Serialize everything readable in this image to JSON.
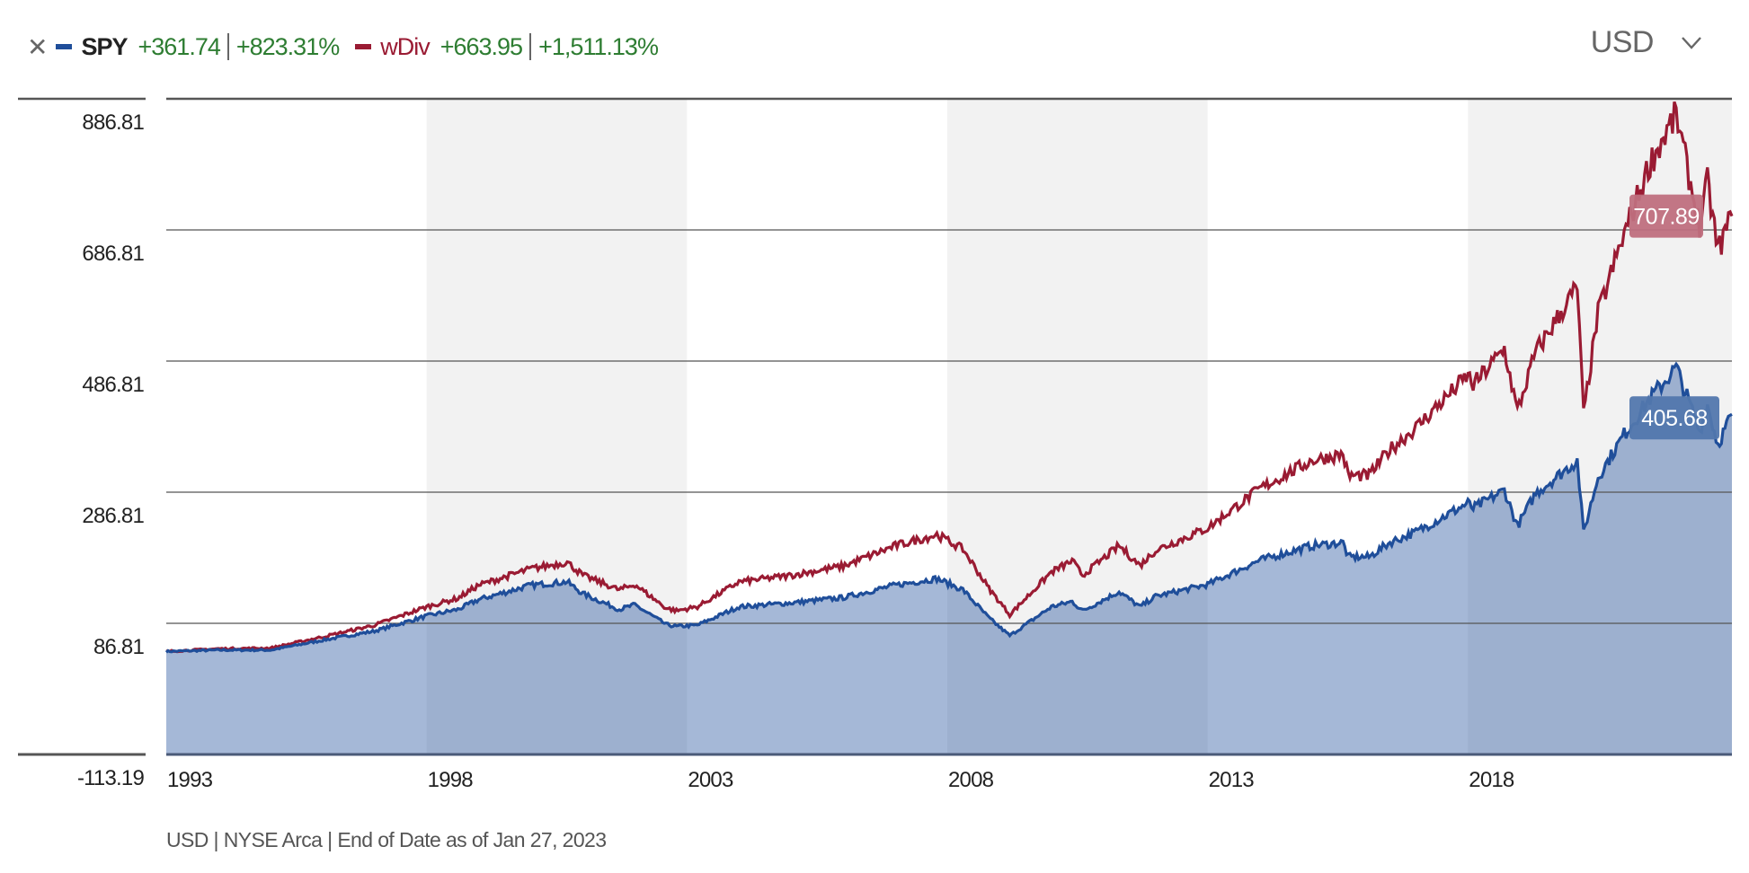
{
  "legend": {
    "close_icon": "close-icon",
    "series": [
      {
        "symbol": "SPY",
        "change": "+361.74",
        "change_pct": "+823.31%",
        "color": "#1f4e9a"
      },
      {
        "symbol": "wDiv",
        "change": "+663.95",
        "change_pct": "+1,511.13%",
        "color": "#9a1b33"
      }
    ]
  },
  "currency_selector": {
    "value": "USD",
    "icon": "chevron-down-icon"
  },
  "footer": "USD | NYSE Arca | End of Date as of Jan 27, 2023",
  "chart_data": {
    "type": "line",
    "title": "",
    "xlabel": "",
    "ylabel": "",
    "xlim": [
      1993.0,
      2023.07
    ],
    "ylim": [
      -113.19,
      886.81
    ],
    "y_ticks": [
      "886.81",
      "686.81",
      "486.81",
      "286.81",
      "86.81",
      "-113.19"
    ],
    "y_tick_values": [
      886.81,
      686.81,
      486.81,
      286.81,
      86.81,
      -113.19
    ],
    "x_ticks": [
      "1993",
      "1998",
      "2003",
      "2008",
      "2013",
      "2018"
    ],
    "x_tick_values": [
      1993,
      1998,
      2003,
      2008,
      2013,
      2018
    ],
    "shaded_periods": [
      [
        1998,
        2003
      ],
      [
        2008,
        2013
      ],
      [
        2018,
        2023.07
      ]
    ],
    "grid": true,
    "series": [
      {
        "name": "SPY",
        "color": "#1f4e9a",
        "filled": true,
        "last_value_label": "405.68",
        "points": [
          [
            1993.0,
            43.9
          ],
          [
            1994.0,
            46
          ],
          [
            1995.0,
            46
          ],
          [
            1996.0,
            61
          ],
          [
            1997.0,
            75
          ],
          [
            1998.0,
            98
          ],
          [
            1998.6,
            108
          ],
          [
            1999.0,
            123
          ],
          [
            2000.0,
            145
          ],
          [
            2000.7,
            150
          ],
          [
            2001.0,
            132
          ],
          [
            2001.7,
            108
          ],
          [
            2002.0,
            115
          ],
          [
            2002.6,
            85
          ],
          [
            2002.8,
            82
          ],
          [
            2003.2,
            84
          ],
          [
            2004.0,
            112
          ],
          [
            2005.0,
            118
          ],
          [
            2006.0,
            126
          ],
          [
            2007.0,
            145
          ],
          [
            2007.8,
            155
          ],
          [
            2008.3,
            138
          ],
          [
            2008.8,
            95
          ],
          [
            2009.2,
            68
          ],
          [
            2010.0,
            112
          ],
          [
            2010.4,
            120
          ],
          [
            2010.6,
            106
          ],
          [
            2011.3,
            135
          ],
          [
            2011.7,
            112
          ],
          [
            2012.0,
            128
          ],
          [
            2013.0,
            146
          ],
          [
            2014.0,
            183
          ],
          [
            2015.0,
            205
          ],
          [
            2015.6,
            210
          ],
          [
            2015.7,
            188
          ],
          [
            2016.1,
            188
          ],
          [
            2016.5,
            210
          ],
          [
            2017.0,
            226
          ],
          [
            2018.0,
            270
          ],
          [
            2018.1,
            262
          ],
          [
            2018.7,
            290
          ],
          [
            2018.95,
            235
          ],
          [
            2019.3,
            285
          ],
          [
            2020.1,
            335
          ],
          [
            2020.22,
            225
          ],
          [
            2020.5,
            310
          ],
          [
            2021.0,
            375
          ],
          [
            2021.5,
            430
          ],
          [
            2022.0,
            477
          ],
          [
            2022.45,
            380
          ],
          [
            2022.6,
            420
          ],
          [
            2022.8,
            360
          ],
          [
            2023.07,
            405.68
          ]
        ]
      },
      {
        "name": "wDiv",
        "color": "#9a1b33",
        "filled": false,
        "last_value_label": "707.89",
        "points": [
          [
            1993.0,
            43.9
          ],
          [
            1994.0,
            48
          ],
          [
            1995.0,
            49
          ],
          [
            1996.0,
            66
          ],
          [
            1997.0,
            84
          ],
          [
            1998.0,
            112
          ],
          [
            1998.6,
            125
          ],
          [
            1999.0,
            145
          ],
          [
            2000.0,
            170
          ],
          [
            2000.7,
            180
          ],
          [
            2001.0,
            160
          ],
          [
            2001.7,
            138
          ],
          [
            2002.0,
            146
          ],
          [
            2002.6,
            110
          ],
          [
            2002.8,
            106
          ],
          [
            2003.2,
            112
          ],
          [
            2004.0,
            150
          ],
          [
            2005.0,
            160
          ],
          [
            2006.0,
            174
          ],
          [
            2007.0,
            205
          ],
          [
            2007.8,
            222
          ],
          [
            2008.3,
            200
          ],
          [
            2008.8,
            140
          ],
          [
            2009.2,
            100
          ],
          [
            2010.0,
            165
          ],
          [
            2010.4,
            182
          ],
          [
            2010.6,
            160
          ],
          [
            2011.3,
            205
          ],
          [
            2011.7,
            175
          ],
          [
            2012.0,
            198
          ],
          [
            2013.0,
            232
          ],
          [
            2014.0,
            292
          ],
          [
            2015.0,
            335
          ],
          [
            2015.6,
            345
          ],
          [
            2015.7,
            312
          ],
          [
            2016.1,
            312
          ],
          [
            2016.5,
            352
          ],
          [
            2017.0,
            385
          ],
          [
            2018.0,
            465
          ],
          [
            2018.1,
            450
          ],
          [
            2018.7,
            505
          ],
          [
            2018.95,
            410
          ],
          [
            2019.3,
            500
          ],
          [
            2020.1,
            600
          ],
          [
            2020.22,
            405
          ],
          [
            2020.5,
            560
          ],
          [
            2021.0,
            680
          ],
          [
            2021.5,
            790
          ],
          [
            2022.0,
            862
          ],
          [
            2022.45,
            690
          ],
          [
            2022.6,
            760
          ],
          [
            2022.8,
            655
          ],
          [
            2023.07,
            707.89
          ]
        ]
      }
    ]
  }
}
